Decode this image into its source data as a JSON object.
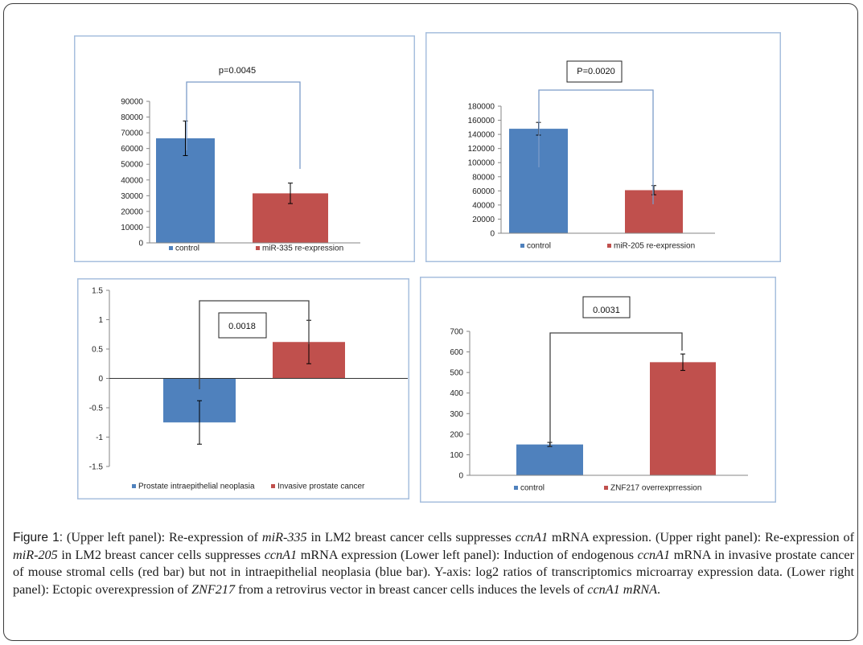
{
  "colors": {
    "blue": "#4f81bd",
    "red": "#c0504d",
    "frame": "#a7bfde"
  },
  "chart_data": [
    {
      "type": "bar",
      "categories": [
        "control",
        "miR-335 re-expression"
      ],
      "values": [
        66500,
        31500
      ],
      "error": [
        11000,
        6500
      ],
      "ylim": [
        0,
        90000
      ],
      "yticks": [
        0,
        10000,
        20000,
        30000,
        40000,
        50000,
        60000,
        70000,
        80000,
        90000
      ],
      "legend_position": "bottom",
      "annotation": "p=0.0045",
      "annotation_boxed": false,
      "grid": false
    },
    {
      "type": "bar",
      "categories": [
        "control",
        "miR-205 re-expression"
      ],
      "values": [
        148000,
        61000
      ],
      "error": [
        9000,
        6500
      ],
      "ylim": [
        0,
        180000
      ],
      "yticks": [
        0,
        20000,
        40000,
        60000,
        80000,
        100000,
        120000,
        140000,
        160000,
        180000
      ],
      "legend_position": "bottom",
      "annotation": "P=0.0020",
      "annotation_boxed": true,
      "grid": false
    },
    {
      "type": "bar",
      "categories": [
        "Prostate intraepithelial neoplasia",
        "Invasive prostate cancer"
      ],
      "values": [
        -0.75,
        0.62
      ],
      "error": [
        0.37,
        0.37
      ],
      "ylim": [
        -1.5,
        1.5
      ],
      "yticks": [
        -1.5,
        -1,
        -0.5,
        0,
        0.5,
        1,
        1.5
      ],
      "legend_position": "bottom",
      "annotation": "0.0018",
      "annotation_boxed": true,
      "grid": false
    },
    {
      "type": "bar",
      "categories": [
        "control",
        "ZNF217 overrexprression"
      ],
      "values": [
        150,
        550
      ],
      "error": [
        10,
        40
      ],
      "ylim": [
        0,
        700
      ],
      "yticks": [
        0,
        100,
        200,
        300,
        400,
        500,
        600,
        700
      ],
      "legend_position": "bottom",
      "annotation": "0.0031",
      "annotation_boxed": true,
      "grid": false
    }
  ],
  "caption": {
    "label": "Figure 1:",
    "parts": [
      [
        " (Upper left panel): Re-expression of ",
        false
      ],
      [
        "miR-335",
        true
      ],
      [
        " in LM2 breast cancer cells suppresses ",
        false
      ],
      [
        "ccnA1",
        true
      ],
      [
        " mRNA expression. (Upper right panel): Re-expression of ",
        false
      ],
      [
        "miR-205",
        true
      ],
      [
        " in LM2 breast cancer cells suppresses ",
        false
      ],
      [
        "ccnA1",
        true
      ],
      [
        " mRNA expression (Lower left panel): Induction of endogenous ",
        false
      ],
      [
        "ccnA1",
        true
      ],
      [
        " mRNA in invasive prostate cancer of mouse stromal cells (red bar) but not in intraepithelial neoplasia (blue bar). Y-axis: log2 ratios of transcriptomics microarray expression data. (Lower right panel): Ectopic overexpression of ",
        false
      ],
      [
        "ZNF217",
        true
      ],
      [
        " from a retrovirus vector in breast cancer cells induces the levels of ",
        false
      ],
      [
        "ccnA1 mRNA",
        true
      ],
      [
        ".",
        false
      ]
    ]
  }
}
